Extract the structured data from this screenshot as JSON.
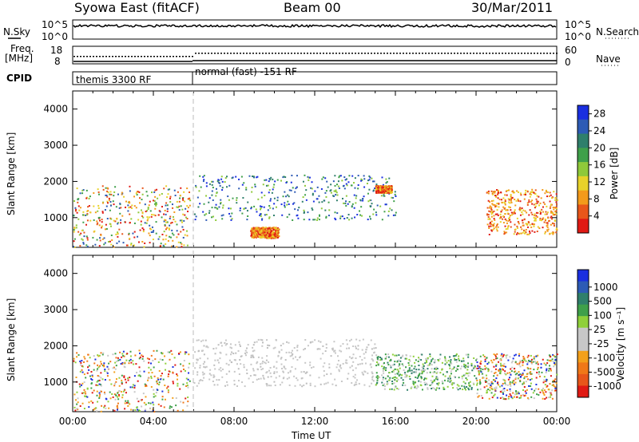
{
  "header": {
    "title_left": "Syowa East (fitACF)",
    "title_center": "Beam 00",
    "title_right": "30/Mar/2011"
  },
  "strips": {
    "nsky_label": "N.Sky",
    "nsearch_label": "N.Search",
    "nsky_ticks": [
      "10^5",
      "10^0"
    ],
    "nsearch_ticks": [
      "10^5",
      "10^0"
    ],
    "freq_label_line1": "Freq.",
    "freq_label_line2": "[MHz]",
    "freq_ticks": [
      "18",
      "8"
    ],
    "nave_label": "Nave",
    "nave_ticks": [
      "60",
      "0"
    ],
    "cpid_label": "CPID",
    "cpid_segments": [
      "themis 3300 RF",
      "normal (fast) -151 RF"
    ]
  },
  "chart_data": [
    {
      "type": "heatmap",
      "panel": "power",
      "ylabel": "Slant Range [km]",
      "yticks": [
        1000,
        2000,
        3000,
        4000
      ],
      "ylim": [
        180,
        4500
      ],
      "xlim": [
        0,
        24
      ],
      "colorbar": {
        "label": "Power [dB]",
        "ticks": [
          4,
          8,
          12,
          16,
          20,
          24,
          28
        ],
        "range": [
          0,
          30
        ],
        "colors": [
          "#1a2fe0",
          "#2d5bb5",
          "#2f7f6b",
          "#3fa04a",
          "#8fc93a",
          "#e8d22a",
          "#f39a1b",
          "#e8561a",
          "#e01a14"
        ]
      },
      "echo_regions_hours_km": [
        {
          "t0": 0.0,
          "t1": 5.8,
          "r0": 200,
          "r1": 1900,
          "level": "mixed"
        },
        {
          "t0": 6.0,
          "t1": 16.0,
          "r0": 950,
          "r1": 2200,
          "level": "low-mid"
        },
        {
          "t0": 8.8,
          "t1": 10.2,
          "r0": 450,
          "r1": 750,
          "level": "high"
        },
        {
          "t0": 15.0,
          "t1": 15.8,
          "r0": 1700,
          "r1": 1900,
          "level": "high"
        },
        {
          "t0": 20.5,
          "t1": 24.0,
          "r0": 550,
          "r1": 1800,
          "level": "high"
        }
      ]
    },
    {
      "type": "heatmap",
      "panel": "velocity",
      "ylabel": "Slant Range [km]",
      "yticks": [
        1000,
        2000,
        3000,
        4000
      ],
      "ylim": [
        180,
        4500
      ],
      "xlim": [
        0,
        24
      ],
      "xticks": [
        "00:00",
        "04:00",
        "08:00",
        "12:00",
        "16:00",
        "20:00",
        "00:00"
      ],
      "xlabel": "Time UT",
      "colorbar": {
        "label": "Velocity [m s⁻¹]",
        "ticks": [
          "1000",
          "500",
          "100",
          "25",
          "-25",
          "-100",
          "-500",
          "-1000"
        ],
        "colors": [
          "#1a2fe0",
          "#2d5bb5",
          "#2f7f6b",
          "#3fa04a",
          "#8fd03a",
          "#c7c7c7",
          "#c7c7c7",
          "#f3a01b",
          "#f07818",
          "#e8561a",
          "#e01a14"
        ]
      },
      "echo_regions_hours_km": [
        {
          "t0": 0.0,
          "t1": 5.8,
          "r0": 200,
          "r1": 1900,
          "level": "mixed"
        },
        {
          "t0": 6.0,
          "t1": 15.0,
          "r0": 900,
          "r1": 2200,
          "level": "ground"
        },
        {
          "t0": 15.0,
          "t1": 20.0,
          "r0": 800,
          "r1": 1800,
          "level": "positive"
        },
        {
          "t0": 20.0,
          "t1": 24.0,
          "r0": 550,
          "r1": 1800,
          "level": "mixed"
        }
      ]
    }
  ],
  "marker_time_hours": 6.0
}
